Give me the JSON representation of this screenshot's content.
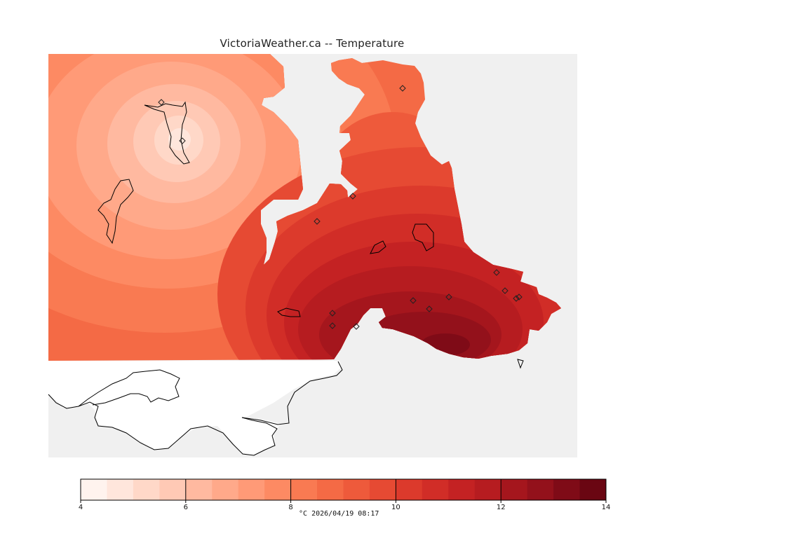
{
  "title": "VictoriaWeather.ca -- Temperature",
  "legend": {
    "unit": "°C",
    "timestamp": "2026/04/19 08:17",
    "min": 4,
    "max": 14,
    "step": 0.5,
    "tick_labels": [
      "4",
      "6",
      "8",
      "10",
      "12",
      "14"
    ],
    "colors": [
      "#fff3ee",
      "#ffe6dc",
      "#ffd8c8",
      "#ffc9b5",
      "#ffb9a0",
      "#ffa98a",
      "#ff9a77",
      "#fd8a63",
      "#f97a52",
      "#f46a45",
      "#ee5a3b",
      "#e64a33",
      "#dc3a2c",
      "#d12d27",
      "#c42223",
      "#b61c20",
      "#a5161d",
      "#93111b",
      "#7f0b17",
      "#6a0612"
    ]
  },
  "colors": {
    "land_base": "#f46a45",
    "water": "#f0f0f0",
    "outside_data": "#ffffff",
    "coastline": "#000000"
  },
  "icons": [
    "station-marker-icon"
  ],
  "stations": [
    {
      "temp": 6.5
    },
    {
      "temp": 5.5
    },
    {
      "temp": 9.0
    },
    {
      "temp": 10.0
    },
    {
      "temp": 11.0
    },
    {
      "temp": 12.5
    },
    {
      "temp": 12.0
    },
    {
      "temp": 12.5
    },
    {
      "temp": 13.0
    },
    {
      "temp": 12.0
    },
    {
      "temp": 11.5
    },
    {
      "temp": 11.5
    },
    {
      "temp": 10.5
    },
    {
      "temp": 11.0
    },
    {
      "temp": 11.0
    }
  ]
}
